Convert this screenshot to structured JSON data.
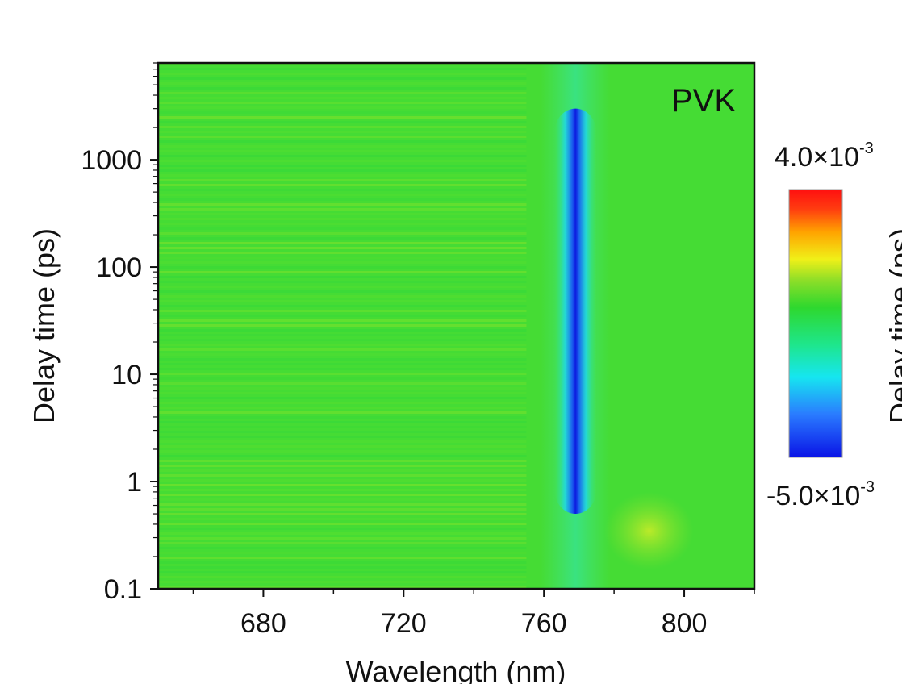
{
  "chart_data": {
    "type": "heatmap",
    "panel_label": "PVK",
    "xlabel": "Wavelength (nm)",
    "ylabel": "Delay time (ps)",
    "right_cut_label": "Delay time (ps)",
    "xlim": [
      650,
      820
    ],
    "ylim": [
      0.1,
      8000
    ],
    "y_scale": "log",
    "x_ticks": [
      {
        "value": 680,
        "label": "680"
      },
      {
        "value": 720,
        "label": "720"
      },
      {
        "value": 760,
        "label": "760"
      },
      {
        "value": 800,
        "label": "800"
      }
    ],
    "y_ticks": [
      {
        "value": 0.1,
        "label": "0.1"
      },
      {
        "value": 1,
        "label": "1"
      },
      {
        "value": 10,
        "label": "10"
      },
      {
        "value": 100,
        "label": "100"
      },
      {
        "value": 1000,
        "label": "1000"
      }
    ],
    "colorbar": {
      "max_label": "4.0×10",
      "max_exp": "-3",
      "min_label": "-5.0×10",
      "min_exp": "-3",
      "range": [
        -0.005,
        0.004
      ],
      "colors": [
        "#0a14e6",
        "#2a7bff",
        "#16e6f0",
        "#1ee68c",
        "#2ed82e",
        "#8cde28",
        "#f0f018",
        "#ffa400",
        "#ff3a10",
        "#ff1010"
      ]
    },
    "background_value": 0.0,
    "features": [
      {
        "type": "bleach",
        "center_nm": 769,
        "width_nm": 3.5,
        "delay_from": 0.5,
        "delay_to": 3000,
        "min_value": -0.005
      },
      {
        "type": "induced_absorption",
        "center_nm": 790,
        "delay_from": 0.15,
        "delay_to": 0.8,
        "max_value": 0.0007
      }
    ]
  }
}
